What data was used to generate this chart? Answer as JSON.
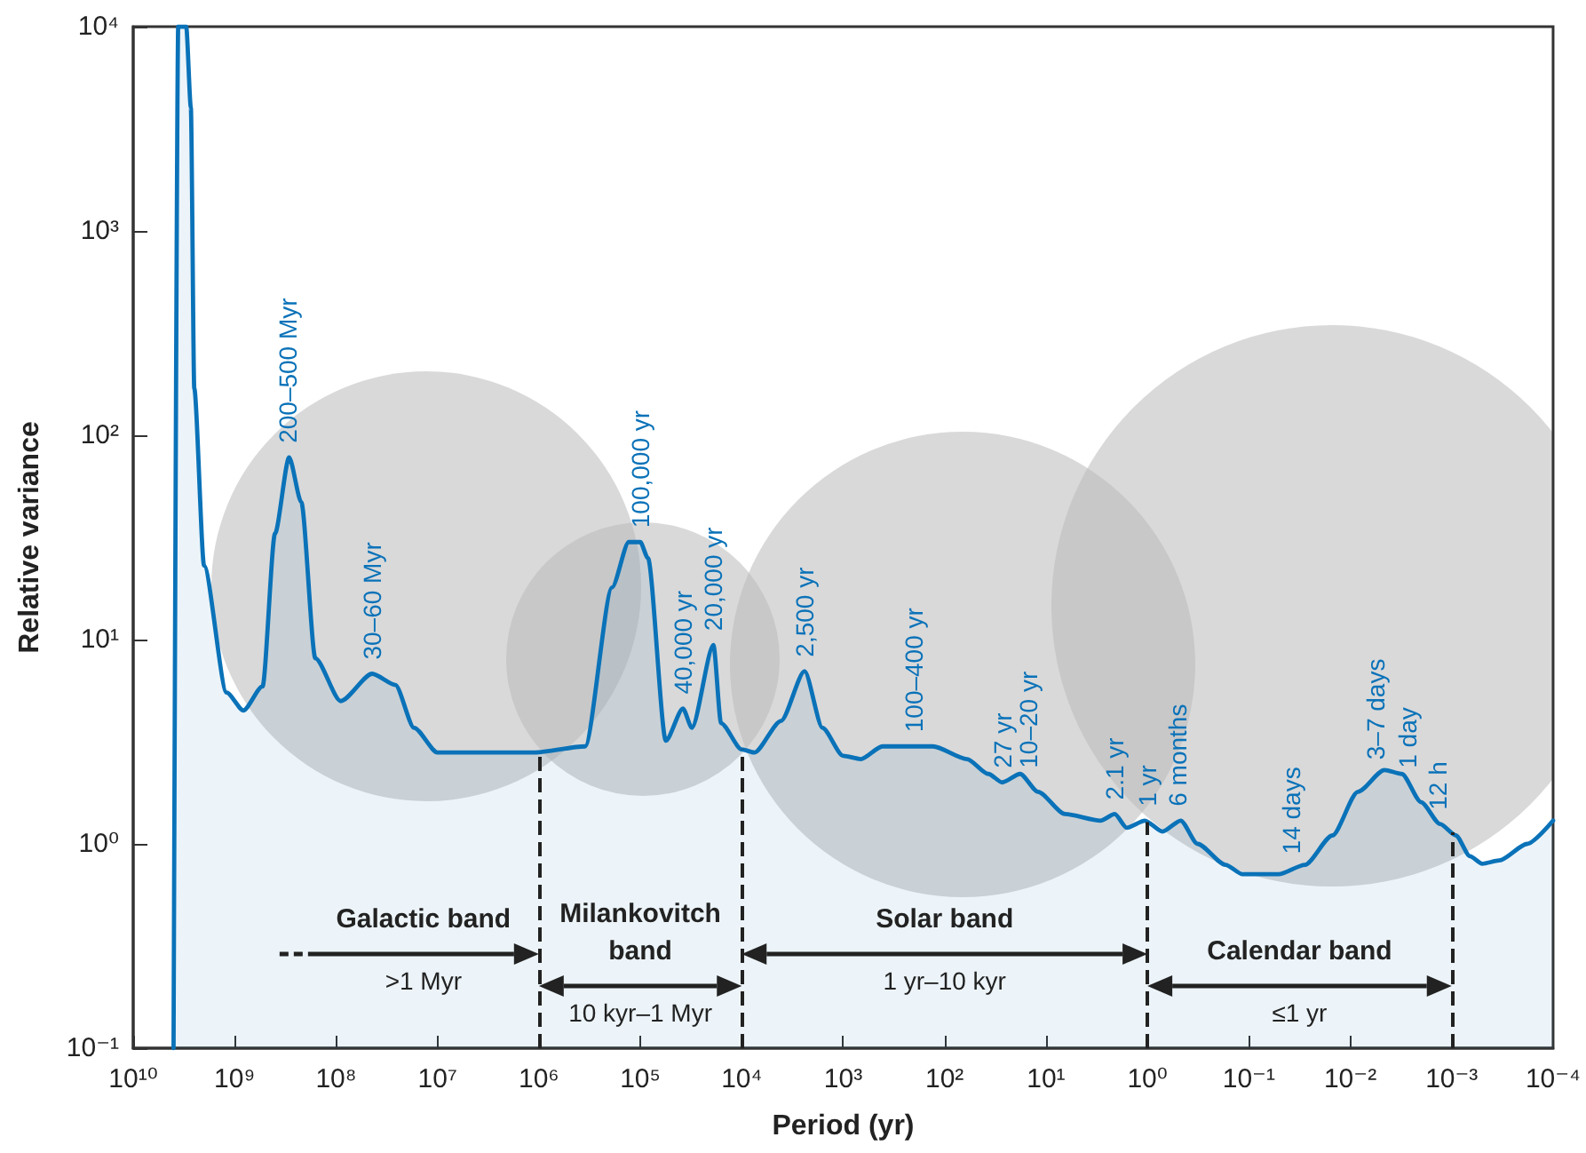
{
  "chart_data": {
    "type": "area",
    "xlabel": "Period (yr)",
    "ylabel": "Relative variance",
    "log": "xy",
    "grid": false,
    "marker": "none",
    "line_style": "solid",
    "xlim": [
      10000000000.0,
      0.0001
    ],
    "ylim": [
      0.1,
      10000
    ],
    "xticks": [
      {
        "value": 10000000000.0,
        "label": "10¹⁰"
      },
      {
        "value": 1000000000.0,
        "label": "10⁹"
      },
      {
        "value": 100000000.0,
        "label": "10⁸"
      },
      {
        "value": 10000000.0,
        "label": "10⁷"
      },
      {
        "value": 1000000.0,
        "label": "10⁶"
      },
      {
        "value": 100000.0,
        "label": "10⁵"
      },
      {
        "value": 10000.0,
        "label": "10⁴"
      },
      {
        "value": 1000,
        "label": "10³"
      },
      {
        "value": 100,
        "label": "10²"
      },
      {
        "value": 10,
        "label": "10¹"
      },
      {
        "value": 1,
        "label": "10⁰"
      },
      {
        "value": 0.1,
        "label": "10⁻¹"
      },
      {
        "value": 0.01,
        "label": "10⁻²"
      },
      {
        "value": 0.001,
        "label": "10⁻³"
      },
      {
        "value": 0.0001,
        "label": "10⁻⁴"
      }
    ],
    "yticks": [
      {
        "value": 0.1,
        "label": "10⁻¹"
      },
      {
        "value": 1,
        "label": "10⁰"
      },
      {
        "value": 10,
        "label": "10¹"
      },
      {
        "value": 100,
        "label": "10²"
      },
      {
        "value": 1000,
        "label": "10³"
      },
      {
        "value": 10000,
        "label": "10⁴"
      }
    ],
    "series": [
      {
        "color": "#0a72b8",
        "x": [
          4000000000.0,
          3600000000.0,
          3000000000.0,
          2700000000.0,
          2500000000.0,
          2000000000.0,
          1200000000.0,
          820000000.0,
          530000000.0,
          400000000.0,
          290000000.0,
          220000000.0,
          160000000.0,
          90000000.0,
          44000000.0,
          26000000.0,
          17000000.0,
          10000000.0,
          1100000.0,
          350000.0,
          190000.0,
          130000.0,
          100000.0,
          84000.0,
          56000.0,
          38000.0,
          31000.0,
          19000.0,
          16000.0,
          10000.0,
          7500,
          4100,
          2400,
          1600,
          1000,
          670,
          410,
          130,
          60,
          37,
          27,
          18,
          12,
          6.5,
          2.9,
          2.1,
          1.6,
          1.06,
          0.71,
          0.47,
          0.32,
          0.17,
          0.115,
          0.051,
          0.028,
          0.015,
          0.0084,
          0.0046,
          0.0031,
          0.002,
          0.0013,
          0.00091,
          0.00066,
          0.0005,
          0.00034,
          0.00018,
          0.0001
        ],
        "values": [
          0.1,
          10000,
          10000,
          4000,
          170,
          23,
          5.5,
          4.5,
          5.9,
          33,
          78,
          47,
          8.1,
          5,
          6.8,
          6,
          3.7,
          2.8,
          2.8,
          3.0,
          18,
          30,
          30,
          25,
          3.2,
          4.6,
          3.7,
          9.4,
          3.9,
          2.9,
          2.8,
          4,
          7,
          3.7,
          2.7,
          2.6,
          3.0,
          3.0,
          2.6,
          2.2,
          2.0,
          2.2,
          1.8,
          1.4,
          1.3,
          1.4,
          1.2,
          1.3,
          1.15,
          1.3,
          1.0,
          0.79,
          0.71,
          0.71,
          0.79,
          1.1,
          1.8,
          2.3,
          2.2,
          1.6,
          1.25,
          1.1,
          0.87,
          0.8,
          0.83,
          1.0,
          1.3
        ]
      }
    ],
    "ref_lines": [
      {
        "axis": "x",
        "value": 1000000.0,
        "color": "#222222",
        "line_style": "dashed"
      },
      {
        "axis": "x",
        "value": 10000.0,
        "color": "#222222",
        "line_style": "dashed"
      },
      {
        "axis": "x",
        "value": 1,
        "color": "#222222",
        "line_style": "dashed"
      },
      {
        "axis": "x",
        "value": 0.001,
        "color": "#222222",
        "line_style": "dashed"
      }
    ],
    "annotations": [
      {
        "text": "200–500 Myr",
        "x": 300000000.0,
        "y": 78
      },
      {
        "text": "30–60 Myr",
        "x": 44000000.0,
        "y": 6.8
      },
      {
        "text": "100,000 yr",
        "x": 100000.0,
        "y": 30
      },
      {
        "text": "40,000 yr",
        "x": 38000.0,
        "y": 4.6
      },
      {
        "text": "20,000 yr",
        "x": 19000.0,
        "y": 9.4
      },
      {
        "text": "2,500 yr",
        "x": 2400,
        "y": 7
      },
      {
        "text": "100–400 yr",
        "x": 200,
        "y": 3.0
      },
      {
        "text": "27 yr",
        "x": 27,
        "y": 2.0
      },
      {
        "text": "10–20 yr",
        "x": 15,
        "y": 2.0
      },
      {
        "text": "2.1 yr",
        "x": 2.1,
        "y": 1.4
      },
      {
        "text": "1 yr",
        "x": 1,
        "y": 1.3
      },
      {
        "text": "6 months",
        "x": 0.5,
        "y": 1.3
      },
      {
        "text": "14 days",
        "x": 0.038,
        "y": 0.76
      },
      {
        "text": "3–7 days",
        "x": 0.0056,
        "y": 2.2
      },
      {
        "text": "1 day",
        "x": 0.00274,
        "y": 2.0
      },
      {
        "text": "12 h",
        "x": 0.00137,
        "y": 1.25
      },
      "Galactic band",
      ">1 Myr",
      "Milankovitch\nband",
      "10 kyr–1 Myr",
      "Solar band",
      "1 yr–10 kyr",
      "Calendar band",
      "≤1 yr"
    ]
  }
}
